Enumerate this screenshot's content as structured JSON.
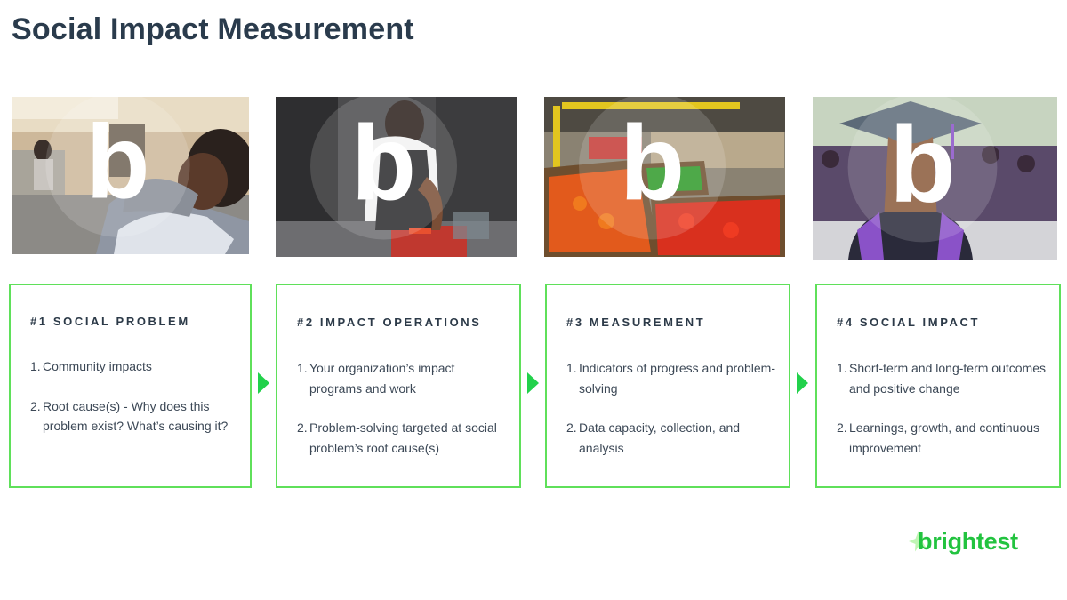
{
  "title": "Social Impact Measurement",
  "accent_color": "#5fe05a",
  "arrow_color": "#22d14b",
  "photos": [
    {
      "icon": "brightest-watermark-icon"
    },
    {
      "icon": "brightest-watermark-icon"
    },
    {
      "icon": "brightest-watermark-icon"
    },
    {
      "icon": "brightest-watermark-icon"
    }
  ],
  "cards": [
    {
      "heading": "#1 SOCIAL PROBLEM",
      "items": [
        {
          "num": "1.",
          "text": "Community impacts"
        },
        {
          "num": "2.",
          "text": "Root cause(s) - Why does this problem exist? What’s causing it?"
        }
      ]
    },
    {
      "heading": "#2 IMPACT OPERATIONS",
      "items": [
        {
          "num": "1.",
          "text": "Your organization’s impact programs and work"
        },
        {
          "num": "2.",
          "text": "Problem-solving targeted at social problem’s root cause(s)"
        }
      ]
    },
    {
      "heading": "#3 MEASUREMENT",
      "items": [
        {
          "num": "1.",
          "text": "Indicators of progress and problem-solving"
        },
        {
          "num": "2.",
          "text": "Data capacity, collection, and analysis"
        }
      ]
    },
    {
      "heading": "#4 SOCIAL IMPACT",
      "items": [
        {
          "num": "1.",
          "text": "Short-term and long-term outcomes and positive change"
        },
        {
          "num": "2.",
          "text": "Learnings, growth, and continuous improvement"
        }
      ]
    }
  ],
  "logo": {
    "text": "brightest",
    "color": "#22c33f",
    "icon": "brightest-star-icon"
  }
}
